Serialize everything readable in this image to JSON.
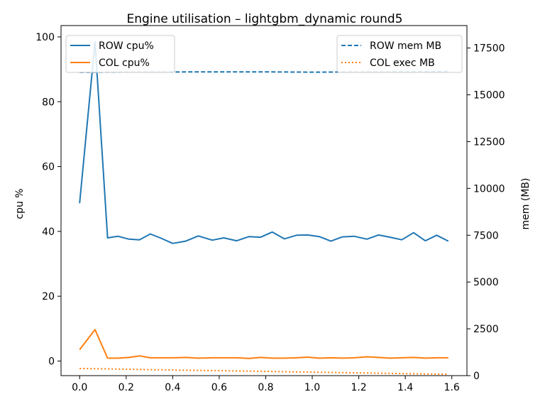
{
  "chart_data": {
    "type": "line",
    "title": "Engine utilisation – lightgbm_dynamic round5",
    "ylabel": "cpu %",
    "y2label": "mem (MB)",
    "xlim": [
      -0.08,
      1.665
    ],
    "ylim": [
      -4.5,
      103.5
    ],
    "y2lim": [
      0,
      18700
    ],
    "x_ticks": [
      "0.0",
      "0.2",
      "0.4",
      "0.6",
      "0.8",
      "1.0",
      "1.2",
      "1.4",
      "1.6"
    ],
    "x_tick_values": [
      0.0,
      0.2,
      0.4,
      0.6,
      0.8,
      1.0,
      1.2,
      1.4,
      1.6
    ],
    "y_ticks": [
      "0",
      "20",
      "40",
      "60",
      "80",
      "100"
    ],
    "y_tick_values": [
      0,
      20,
      40,
      60,
      80,
      100
    ],
    "y2_ticks": [
      "0",
      "2500",
      "5000",
      "7500",
      "10000",
      "12500",
      "15000",
      "17500"
    ],
    "y2_tick_values": [
      0,
      2500,
      5000,
      7500,
      10000,
      12500,
      15000,
      17500
    ],
    "x": [
      0.0,
      0.066,
      0.12,
      0.164,
      0.212,
      0.257,
      0.304,
      0.35,
      0.4,
      0.456,
      0.51,
      0.57,
      0.62,
      0.675,
      0.728,
      0.778,
      0.828,
      0.88,
      0.932,
      0.98,
      1.03,
      1.08,
      1.13,
      1.18,
      1.235,
      1.285,
      1.335,
      1.385,
      1.436,
      1.486,
      1.535,
      1.585
    ],
    "series": [
      {
        "name": "ROW cpu%",
        "axis": "left",
        "color": "#1f77b4",
        "style": "solid",
        "values": [
          48.7,
          98.5,
          38.0,
          38.5,
          37.6,
          37.4,
          39.2,
          37.9,
          36.3,
          37.0,
          38.6,
          37.3,
          38.0,
          37.1,
          38.4,
          38.2,
          39.8,
          37.7,
          38.8,
          38.9,
          38.4,
          37.0,
          38.3,
          38.5,
          37.6,
          38.9,
          38.2,
          37.4,
          39.6,
          37.1,
          38.8,
          37.0
        ]
      },
      {
        "name": "COL cpu%",
        "axis": "left",
        "color": "#ff7f0e",
        "style": "solid",
        "values": [
          3.5,
          9.7,
          0.9,
          0.9,
          1.1,
          1.6,
          1.0,
          1.0,
          1.0,
          1.1,
          0.9,
          1.0,
          1.0,
          1.0,
          0.8,
          1.1,
          0.9,
          0.9,
          1.0,
          1.2,
          0.9,
          1.0,
          0.9,
          1.0,
          1.3,
          1.1,
          0.9,
          1.0,
          1.1,
          0.9,
          1.0,
          1.0
        ]
      },
      {
        "name": "ROW mem MB",
        "axis": "right",
        "color": "#1f77b4",
        "style": "dashed",
        "values": [
          16200,
          16205,
          16210,
          16212,
          16215,
          16215,
          16218,
          16220,
          16220,
          16222,
          16222,
          16224,
          16224,
          16225,
          16225,
          16225,
          16222,
          16220,
          16215,
          16210,
          16212,
          16215,
          16218,
          16220,
          16222,
          16225,
          16228,
          16230,
          16232,
          16235,
          16238,
          16240
        ]
      },
      {
        "name": "COL exec MB",
        "axis": "right",
        "color": "#ff7f0e",
        "style": "dotted",
        "values": [
          380,
          370,
          360,
          350,
          340,
          330,
          320,
          310,
          300,
          290,
          280,
          270,
          260,
          250,
          240,
          230,
          220,
          210,
          200,
          190,
          180,
          170,
          160,
          150,
          140,
          130,
          120,
          110,
          100,
          90,
          80,
          70
        ]
      }
    ],
    "legend_left": {
      "placement": "top-left",
      "entries": [
        "ROW cpu%",
        "COL cpu%"
      ]
    },
    "legend_right": {
      "placement": "top-right",
      "entries": [
        "ROW mem MB",
        "COL exec MB"
      ]
    },
    "grid": false
  }
}
